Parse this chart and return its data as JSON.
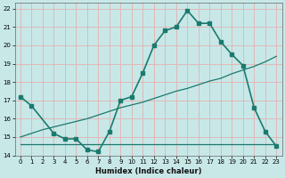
{
  "xlabel": "Humidex (Indice chaleur)",
  "ylabel": "",
  "bg_color": "#c8e8e8",
  "grid_color": "#e0b8b8",
  "line_color": "#1a7a6e",
  "xlim": [
    -0.5,
    23.5
  ],
  "ylim": [
    14,
    22.3
  ],
  "yticks": [
    14,
    15,
    16,
    17,
    18,
    19,
    20,
    21,
    22
  ],
  "xticks": [
    0,
    1,
    2,
    3,
    4,
    5,
    6,
    7,
    8,
    9,
    10,
    11,
    12,
    13,
    14,
    15,
    16,
    17,
    18,
    19,
    20,
    21,
    22,
    23
  ],
  "series1_x": [
    0,
    1,
    3,
    4,
    5,
    6,
    7,
    8,
    9,
    10,
    11,
    12,
    13,
    14,
    15,
    16,
    17,
    18,
    19,
    20,
    21,
    22,
    23
  ],
  "series1_y": [
    17.2,
    16.7,
    15.2,
    14.9,
    14.9,
    14.3,
    14.2,
    15.3,
    17.0,
    17.2,
    18.5,
    20.0,
    20.8,
    21.0,
    21.9,
    21.2,
    21.2,
    20.2,
    19.5,
    18.9,
    16.6,
    15.3,
    14.5
  ],
  "series2_x": [
    0,
    1,
    2,
    3,
    4,
    5,
    6,
    7,
    8,
    9,
    10,
    11,
    12,
    13,
    14,
    15,
    16,
    17,
    18,
    19,
    20,
    21,
    22,
    23
  ],
  "series2_y": [
    14.6,
    14.6,
    14.6,
    14.6,
    14.6,
    14.6,
    14.6,
    14.6,
    14.6,
    14.6,
    14.6,
    14.6,
    14.6,
    14.6,
    14.6,
    14.6,
    14.6,
    14.6,
    14.6,
    14.6,
    14.6,
    14.6,
    14.6,
    14.6
  ],
  "series3_x": [
    0,
    1,
    2,
    3,
    4,
    5,
    6,
    7,
    8,
    9,
    10,
    11,
    12,
    13,
    14,
    15,
    16,
    17,
    18,
    19,
    20,
    21,
    22,
    23
  ],
  "series3_y": [
    15.0,
    15.2,
    15.4,
    15.55,
    15.7,
    15.85,
    16.0,
    16.2,
    16.4,
    16.6,
    16.75,
    16.9,
    17.1,
    17.3,
    17.5,
    17.65,
    17.85,
    18.05,
    18.2,
    18.45,
    18.65,
    18.85,
    19.1,
    19.4
  ]
}
